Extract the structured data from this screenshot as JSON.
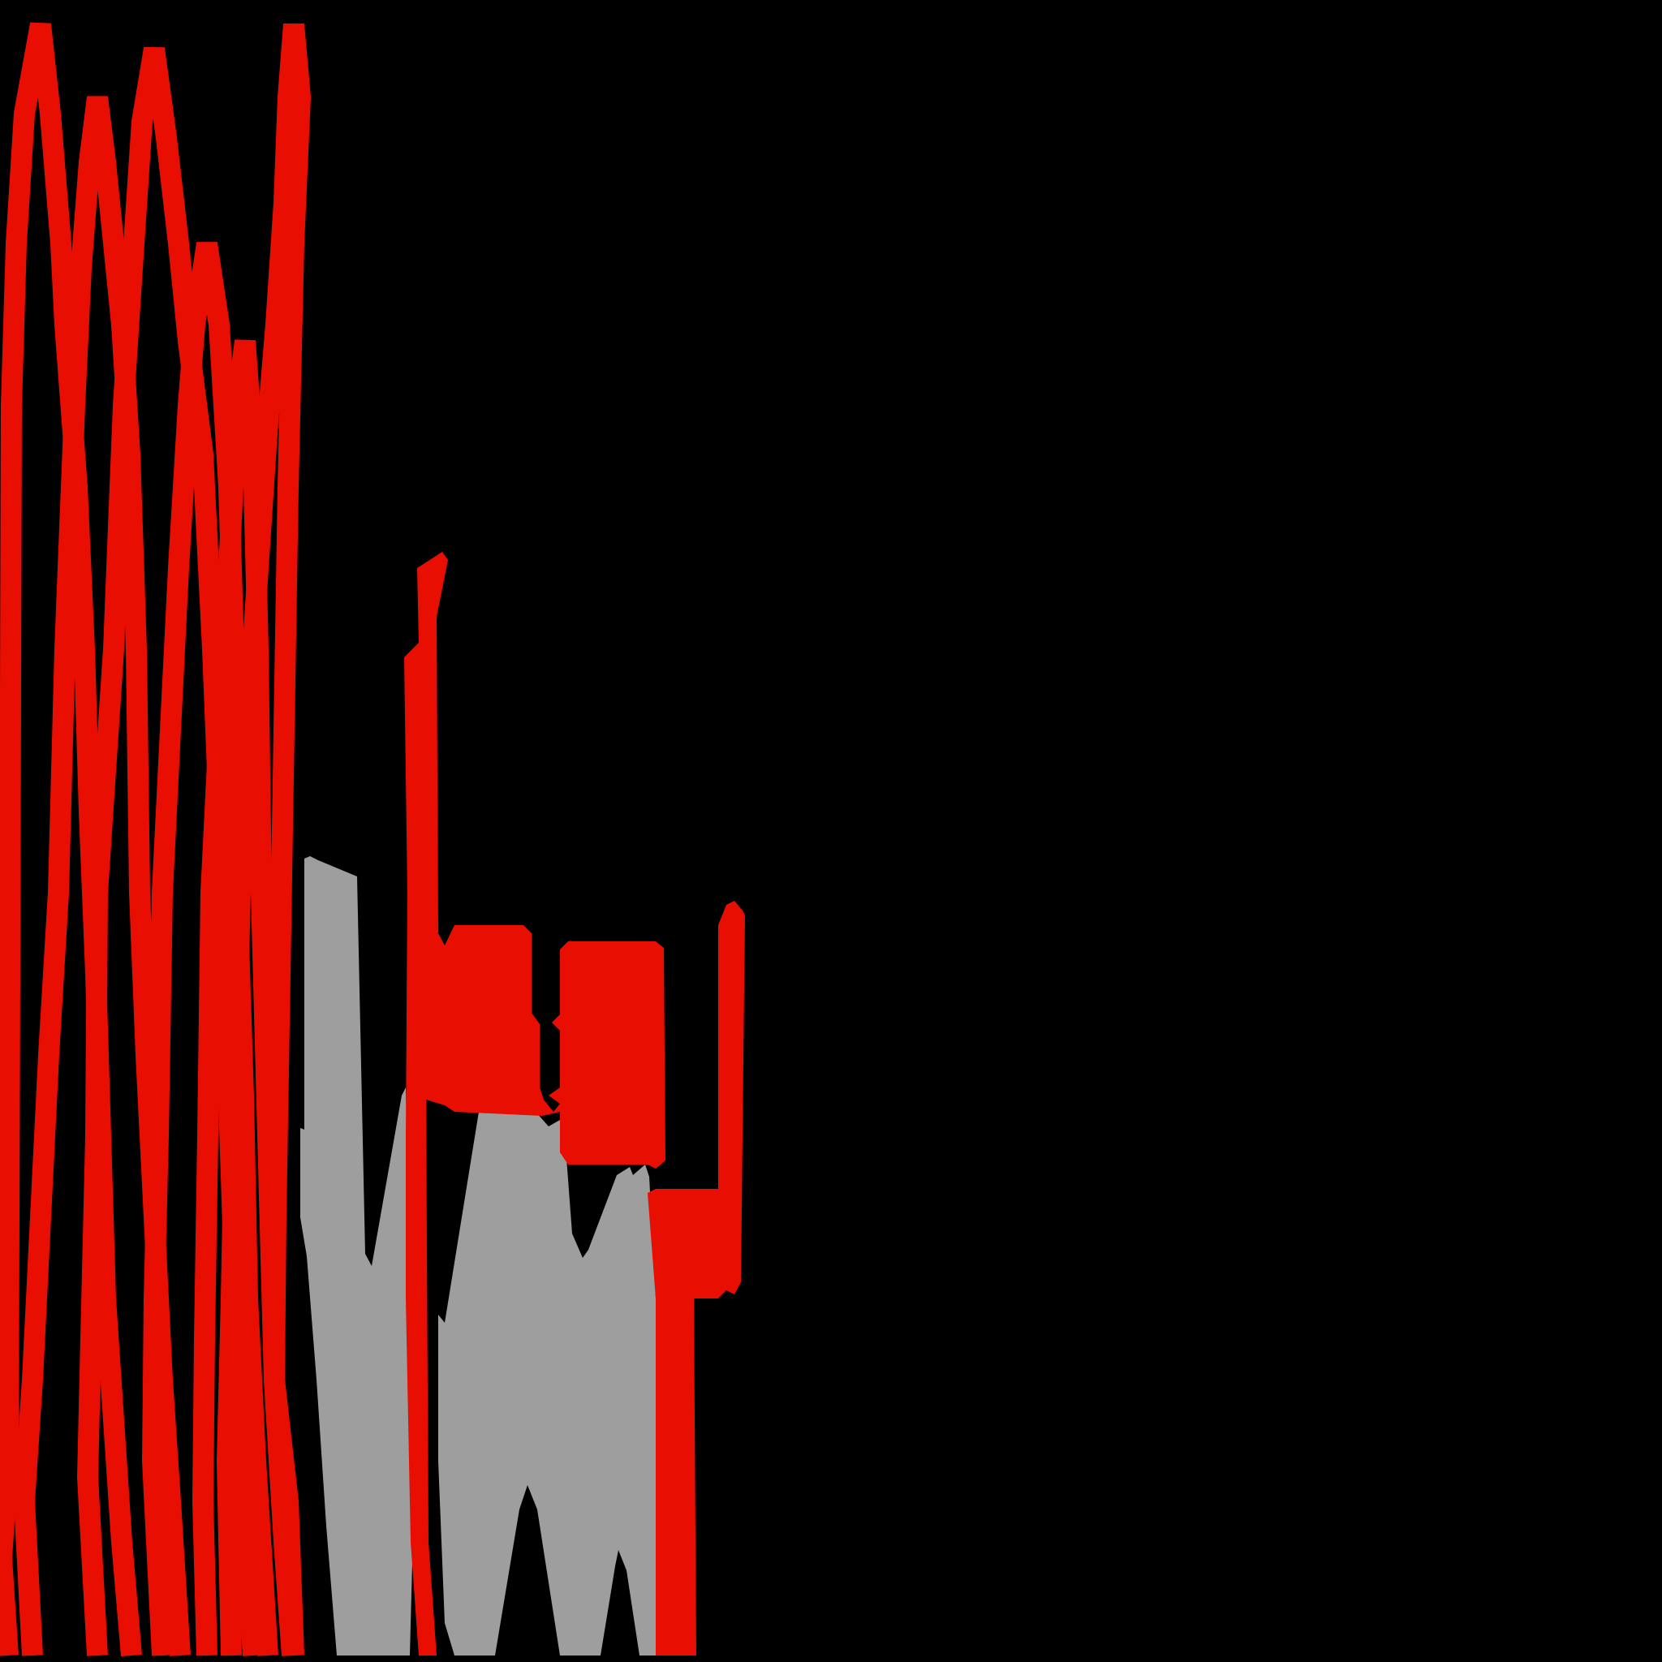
{
  "canvas": {
    "background": "#000000"
  },
  "palette": {
    "primary": "#e80f02",
    "secondary": "#9e9e9e"
  },
  "shapes": [
    {
      "name": "red-zigzag-strokes",
      "color_key": "primary"
    },
    {
      "name": "gray-zigzag-strokes",
      "color_key": "secondary"
    },
    {
      "name": "red-blocks",
      "color_key": "primary"
    }
  ]
}
